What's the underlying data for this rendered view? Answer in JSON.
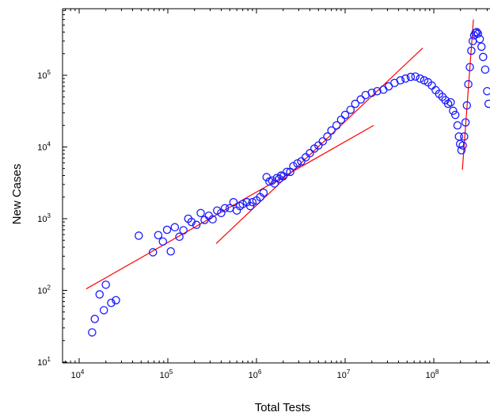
{
  "chart_data": {
    "type": "scatter",
    "xlabel": "Total Tests",
    "ylabel": "New Cases",
    "x_scale": "log",
    "y_scale": "log",
    "xlim": [
      5000,
      420000000
    ],
    "ylim": [
      10,
      1000000
    ],
    "x_ticks": [
      {
        "value": 10000,
        "base": "10",
        "exp": "4"
      },
      {
        "value": 100000,
        "base": "10",
        "exp": "5"
      },
      {
        "value": 1000000,
        "base": "10",
        "exp": "6"
      },
      {
        "value": 10000000,
        "base": "10",
        "exp": "7"
      },
      {
        "value": 100000000,
        "base": "10",
        "exp": "8"
      }
    ],
    "y_ticks": [
      {
        "value": 10,
        "base": "10",
        "exp": "1"
      },
      {
        "value": 100,
        "base": "10",
        "exp": "2"
      },
      {
        "value": 1000,
        "base": "10",
        "exp": "3"
      },
      {
        "value": 10000,
        "base": "10",
        "exp": "4"
      },
      {
        "value": 100000,
        "base": "10",
        "exp": "5"
      }
    ],
    "grid": false,
    "marker": "open-circle",
    "series": [
      {
        "points": [
          [
            14000,
            26
          ],
          [
            15000,
            40
          ],
          [
            17000,
            88
          ],
          [
            19000,
            53
          ],
          [
            20000,
            120
          ],
          [
            23000,
            67
          ],
          [
            26000,
            73
          ],
          [
            47000,
            580
          ],
          [
            68000,
            340
          ],
          [
            78000,
            590
          ],
          [
            88000,
            480
          ],
          [
            98000,
            700
          ],
          [
            108000,
            350
          ],
          [
            120000,
            760
          ],
          [
            135000,
            560
          ],
          [
            150000,
            690
          ],
          [
            170000,
            1000
          ],
          [
            185000,
            900
          ],
          [
            210000,
            820
          ],
          [
            235000,
            1200
          ],
          [
            260000,
            960
          ],
          [
            290000,
            1100
          ],
          [
            320000,
            980
          ],
          [
            360000,
            1300
          ],
          [
            400000,
            1200
          ],
          [
            440000,
            1400
          ],
          [
            500000,
            1400
          ],
          [
            550000,
            1700
          ],
          [
            600000,
            1300
          ],
          [
            650000,
            1500
          ],
          [
            700000,
            1600
          ],
          [
            780000,
            1700
          ],
          [
            850000,
            1500
          ],
          [
            900000,
            1700
          ],
          [
            1000000,
            1800
          ],
          [
            1100000,
            2000
          ],
          [
            1200000,
            2300
          ],
          [
            1300000,
            3800
          ],
          [
            1400000,
            3300
          ],
          [
            1500000,
            3400
          ],
          [
            1600000,
            3100
          ],
          [
            1700000,
            3700
          ],
          [
            1800000,
            3600
          ],
          [
            1900000,
            4000
          ],
          [
            2000000,
            3900
          ],
          [
            2200000,
            4500
          ],
          [
            2400000,
            4500
          ],
          [
            2600000,
            5400
          ],
          [
            2900000,
            5900
          ],
          [
            3200000,
            6300
          ],
          [
            3600000,
            7200
          ],
          [
            4000000,
            8200
          ],
          [
            4500000,
            9500
          ],
          [
            5000000,
            10500
          ],
          [
            5600000,
            12000
          ],
          [
            6300000,
            14000
          ],
          [
            7000000,
            17000
          ],
          [
            8000000,
            20000
          ],
          [
            9000000,
            24000
          ],
          [
            10000000,
            28000
          ],
          [
            11500000,
            33000
          ],
          [
            13000000,
            40000
          ],
          [
            15000000,
            46000
          ],
          [
            17000000,
            53000
          ],
          [
            20000000,
            57000
          ],
          [
            23000000,
            60000
          ],
          [
            27000000,
            63000
          ],
          [
            31000000,
            70000
          ],
          [
            36000000,
            78000
          ],
          [
            42000000,
            85000
          ],
          [
            48000000,
            90000
          ],
          [
            55000000,
            95000
          ],
          [
            62000000,
            96000
          ],
          [
            70000000,
            90000
          ],
          [
            78000000,
            85000
          ],
          [
            86000000,
            80000
          ],
          [
            95000000,
            72000
          ],
          [
            105000000,
            62000
          ],
          [
            115000000,
            55000
          ],
          [
            125000000,
            50000
          ],
          [
            135000000,
            45000
          ],
          [
            145000000,
            40000
          ],
          [
            155000000,
            42000
          ],
          [
            165000000,
            32000
          ],
          [
            175000000,
            28000
          ],
          [
            185000000,
            20000
          ],
          [
            192000000,
            14000
          ],
          [
            198000000,
            11000
          ],
          [
            205000000,
            9000
          ],
          [
            212000000,
            10500
          ],
          [
            220000000,
            14000
          ],
          [
            228000000,
            22000
          ],
          [
            236000000,
            38000
          ],
          [
            245000000,
            75000
          ],
          [
            255000000,
            130000
          ],
          [
            265000000,
            220000
          ],
          [
            275000000,
            300000
          ],
          [
            285000000,
            360000
          ],
          [
            295000000,
            390000
          ],
          [
            305000000,
            400000
          ],
          [
            315000000,
            380000
          ],
          [
            330000000,
            320000
          ],
          [
            345000000,
            250000
          ],
          [
            360000000,
            180000
          ],
          [
            380000000,
            120000
          ],
          [
            400000000,
            60000
          ],
          [
            415000000,
            40000
          ]
        ]
      }
    ],
    "fit_lines": [
      {
        "x": [
          12000,
          21000000
        ],
        "y": [
          105,
          20000
        ]
      },
      {
        "x": [
          350000,
          75000000
        ],
        "y": [
          450,
          240000
        ]
      },
      {
        "x": [
          210000000,
          280000000
        ],
        "y": [
          4800,
          600000
        ]
      }
    ],
    "colors": {
      "points": "#1a1aff",
      "fit": "#ff0000",
      "axis": "#000000"
    }
  }
}
